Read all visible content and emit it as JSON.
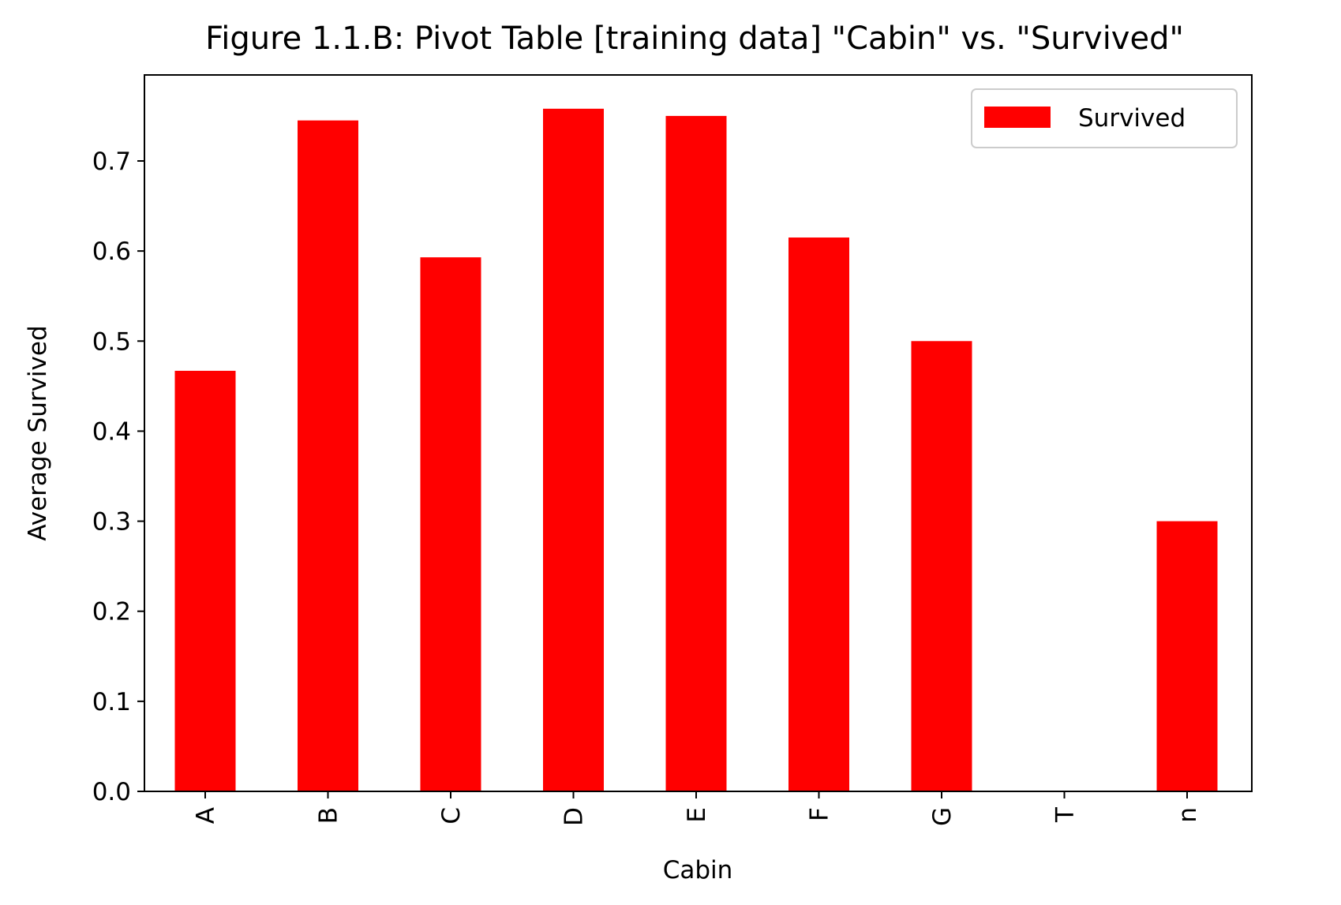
{
  "chart_data": {
    "type": "bar",
    "title": "Figure 1.1.B:  Pivot Table [training data] \"Cabin\" vs. \"Survived\"",
    "xlabel": "Cabin",
    "ylabel": "Average Survived",
    "categories": [
      "A",
      "B",
      "C",
      "D",
      "E",
      "F",
      "G",
      "T",
      "n"
    ],
    "series": [
      {
        "name": "Survived",
        "values": [
          0.467,
          0.745,
          0.593,
          0.758,
          0.75,
          0.615,
          0.5,
          0.0,
          0.3
        ]
      }
    ],
    "yticks": [
      "0.0",
      "0.1",
      "0.2",
      "0.3",
      "0.4",
      "0.5",
      "0.6",
      "0.7"
    ],
    "ylim": [
      0,
      0.7955
    ],
    "grid": false,
    "legend_position": "top-right",
    "bar_color": "#ff0000"
  }
}
